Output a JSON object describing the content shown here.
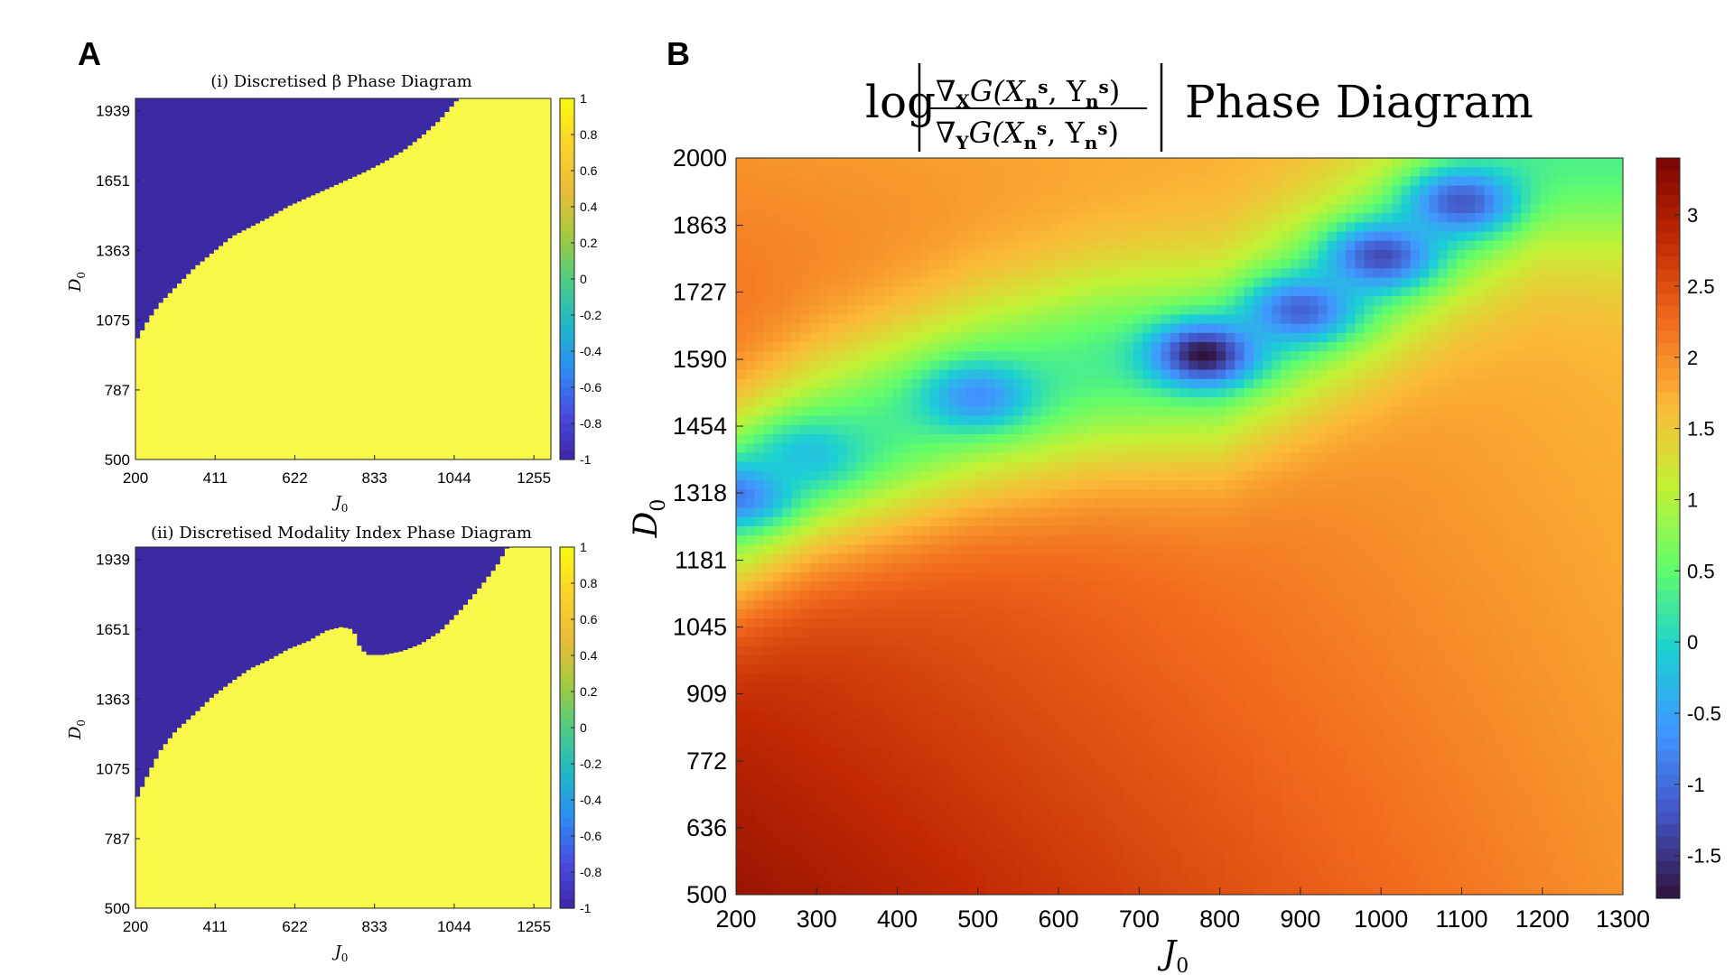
{
  "figure": {
    "panel_a_letter": "A",
    "panel_b_letter": "B"
  },
  "colors": {
    "binary_low": "#3b2aa3",
    "binary_high": "#f9f84a",
    "colormap_parula": [
      "#3e26a8",
      "#4a4be0",
      "#2c8cf2",
      "#1db8c6",
      "#4fcc82",
      "#a8c93b",
      "#ecbc3a",
      "#fad32a",
      "#f9fb0e"
    ],
    "colormap_turbo": [
      "#30123b",
      "#4454c4",
      "#4195ff",
      "#1bcfd4",
      "#61fc6c",
      "#c3f134",
      "#fbb938",
      "#f26b1d",
      "#c22903",
      "#7a0403"
    ]
  },
  "chart_data": [
    {
      "type": "heatmap",
      "title": "(i) Discretised β Phase Diagram",
      "xlabel": "J",
      "xlabel_sub": "0",
      "ylabel": "D",
      "ylabel_sub": "0",
      "xlim": [
        200,
        1300
      ],
      "ylim": [
        500,
        1990
      ],
      "xticks": [
        "200",
        "411",
        "622",
        "833",
        "1044",
        "1255"
      ],
      "yticks": [
        "1939",
        "1651",
        "1363",
        "1075",
        "787",
        "500"
      ],
      "colorbar_ticks": [
        "1",
        "0.8",
        "0.6",
        "0.4",
        "0.2",
        "0",
        "-0.2",
        "-0.4",
        "-0.6",
        "-0.8",
        "-1"
      ],
      "clim": [
        -1,
        1
      ],
      "values": [
        -1,
        1
      ],
      "boundary_J0": [
        200,
        230,
        260,
        300,
        350,
        400,
        450,
        500,
        550,
        600,
        650,
        700,
        750,
        800,
        850,
        900,
        950,
        1000,
        1050
      ],
      "boundary_D0": [
        1000,
        1080,
        1145,
        1210,
        1290,
        1355,
        1420,
        1460,
        1500,
        1545,
        1580,
        1615,
        1650,
        1685,
        1725,
        1770,
        1830,
        1900,
        1990
      ],
      "region_above": -1,
      "region_below": 1
    },
    {
      "type": "heatmap",
      "title": "(ii) Discretised Modality Index Phase Diagram",
      "xlabel": "J",
      "xlabel_sub": "0",
      "ylabel": "D",
      "ylabel_sub": "0",
      "xlim": [
        200,
        1300
      ],
      "ylim": [
        500,
        1990
      ],
      "xticks": [
        "200",
        "411",
        "622",
        "833",
        "1044",
        "1255"
      ],
      "yticks": [
        "1939",
        "1651",
        "1363",
        "1075",
        "787",
        "500"
      ],
      "colorbar_ticks": [
        "1",
        "0.8",
        "0.6",
        "0.4",
        "0.2",
        "0",
        "-0.2",
        "-0.4",
        "-0.6",
        "-0.8",
        "-1"
      ],
      "clim": [
        -1,
        1
      ],
      "values": [
        -1,
        1
      ],
      "boundary_J0": [
        200,
        230,
        260,
        300,
        350,
        400,
        450,
        500,
        550,
        600,
        650,
        700,
        740,
        770,
        790,
        810,
        850,
        900,
        950,
        1000,
        1050,
        1100,
        1150,
        1180
      ],
      "boundary_D0": [
        960,
        1060,
        1150,
        1230,
        1300,
        1375,
        1435,
        1490,
        1525,
        1570,
        1600,
        1645,
        1660,
        1650,
        1570,
        1545,
        1545,
        1560,
        1590,
        1640,
        1720,
        1810,
        1910,
        1990
      ],
      "region_above": -1,
      "region_below": 1
    },
    {
      "type": "heatmap",
      "title_prefix": "log",
      "title_numerator": "∇",
      "title_numerator_sub": "X",
      "title_denominator": "∇",
      "title_denominator_sub": "Y",
      "title_func": "G(X",
      "title_func_sub": "n",
      "title_func_sup": "s",
      "title_func_mid": ", Y",
      "title_func_end": ")",
      "title_suffix": "Phase Diagram",
      "xlabel": "J",
      "xlabel_sub": "0",
      "ylabel": "D",
      "ylabel_sub": "0",
      "xlim": [
        200,
        1300
      ],
      "ylim": [
        500,
        2000
      ],
      "xticks": [
        "200",
        "300",
        "400",
        "500",
        "600",
        "700",
        "800",
        "900",
        "1000",
        "1100",
        "1200",
        "1300"
      ],
      "yticks": [
        "2000",
        "1863",
        "1727",
        "1590",
        "1454",
        "1318",
        "1181",
        "1045",
        "909",
        "772",
        "636",
        "500"
      ],
      "colorbar_ticks": [
        "3",
        "2.5",
        "2",
        "1.5",
        "1",
        "0.5",
        "0",
        "-0.5",
        "-1",
        "-1.5"
      ],
      "clim": [
        -1.8,
        3.4
      ],
      "ridge_J0": [
        200,
        300,
        500,
        650,
        800,
        900,
        1000,
        1100,
        1200
      ],
      "ridge_D0": [
        1310,
        1400,
        1520,
        1580,
        1600,
        1690,
        1790,
        1910,
        2010
      ],
      "minima": [
        {
          "J0": 200,
          "D0": 1315,
          "value": -0.9
        },
        {
          "J0": 290,
          "D0": 1395,
          "value": -0.2
        },
        {
          "J0": 500,
          "D0": 1515,
          "value": -0.7
        },
        {
          "J0": 780,
          "D0": 1600,
          "value": -1.8
        },
        {
          "J0": 900,
          "D0": 1690,
          "value": -1.1
        },
        {
          "J0": 1000,
          "D0": 1800,
          "value": -1.3
        },
        {
          "J0": 1100,
          "D0": 1910,
          "value": -1.2
        }
      ],
      "value_ranges": {
        "ridge": "-1.8 to 0",
        "upper_left_corner": "about 2.4",
        "lower_left_corner": "about 3.4",
        "lower_right": "about 2.0",
        "upper_right": "about 1.8"
      }
    }
  ]
}
